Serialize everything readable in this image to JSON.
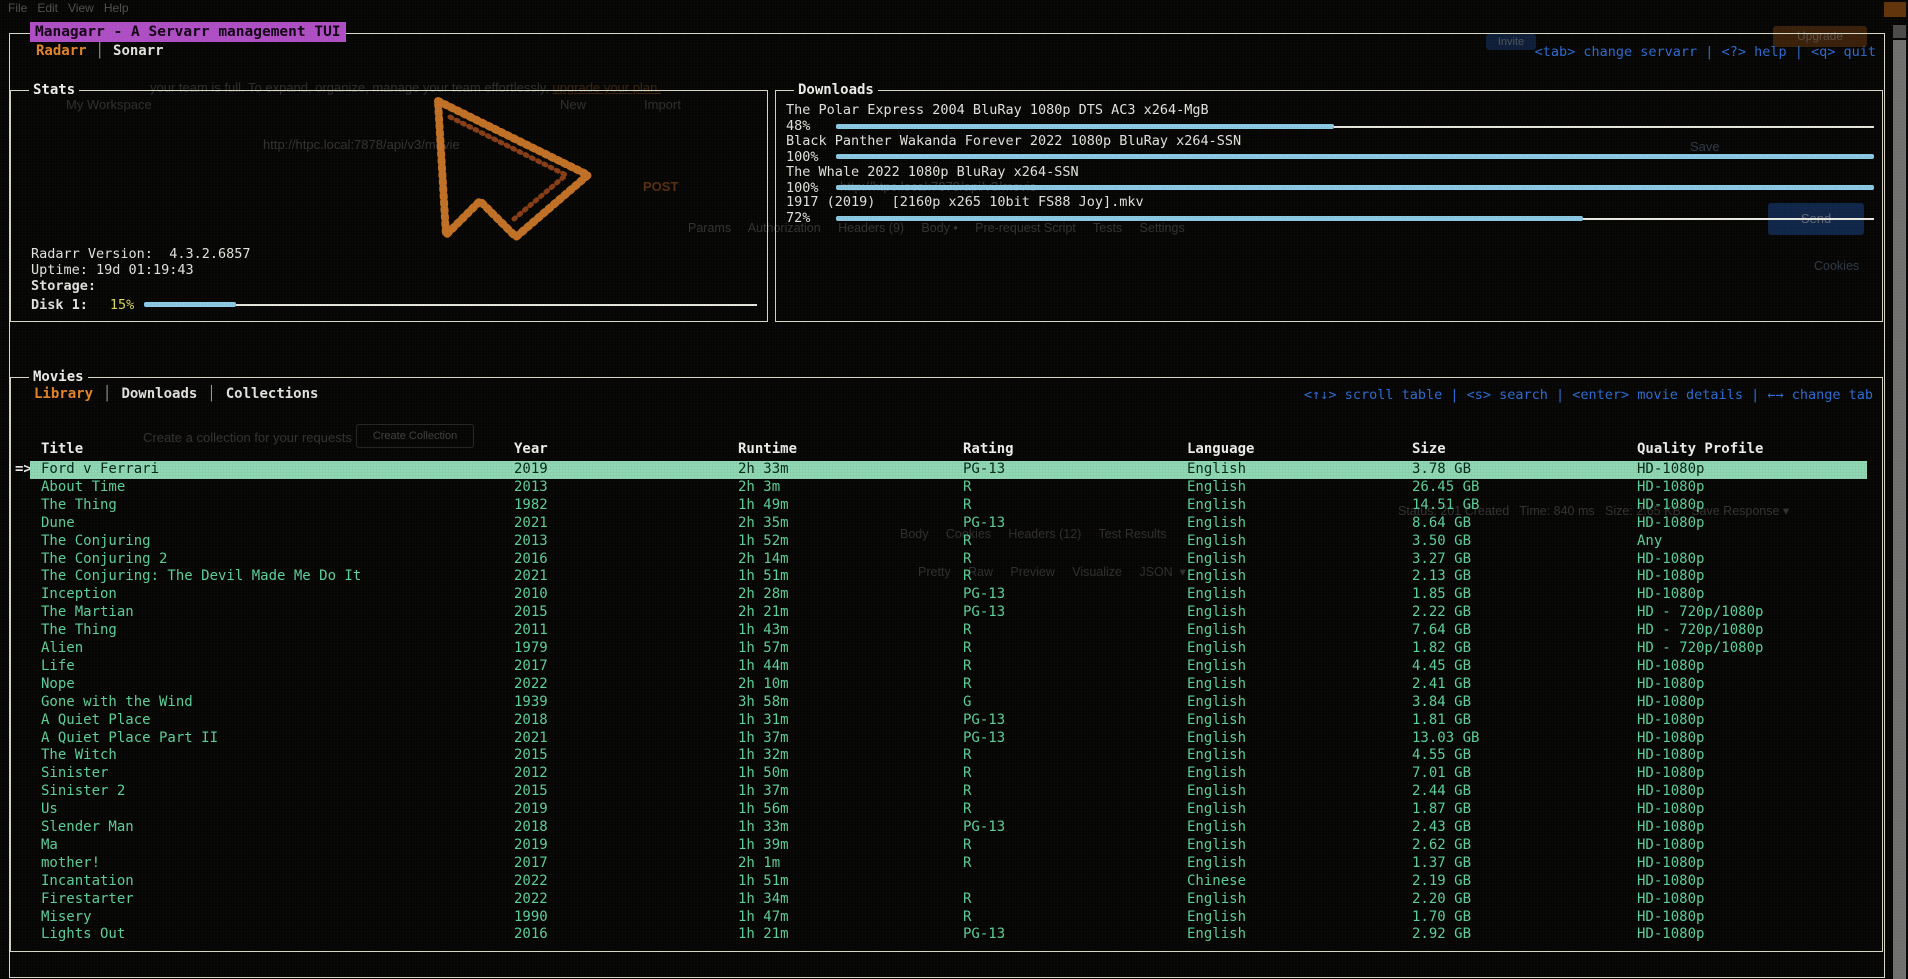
{
  "window": {
    "title": "Managarr - A Servarr management TUI",
    "tabs": [
      {
        "label": "Radarr",
        "active": true
      },
      {
        "label": "Sonarr",
        "active": false
      }
    ],
    "tab_separator": "│",
    "keybar": "<tab> change servarr | <?> help | <q> quit"
  },
  "stats": {
    "panel_title": "Stats",
    "version_label": "Radarr Version:",
    "version_value": "4.3.2.6857",
    "uptime_label": "Uptime:",
    "uptime_value": "19d 01:19:43",
    "storage_label": "Storage:",
    "disk": {
      "label": "Disk 1:",
      "percent_label": "15%",
      "percent": 15
    }
  },
  "downloads": {
    "panel_title": "Downloads",
    "items": [
      {
        "title": "The Polar Express 2004 BluRay 1080p DTS AC3 x264-MgB",
        "percent_label": "48%",
        "percent": 48
      },
      {
        "title": "Black Panther Wakanda Forever 2022 1080p BluRay x264-SSN",
        "percent_label": "100%",
        "percent": 100
      },
      {
        "title": "The Whale 2022 1080p BluRay x264-SSN",
        "percent_label": "100%",
        "percent": 100
      },
      {
        "title": "1917 (2019)  [2160p x265 10bit FS88 Joy].mkv",
        "percent_label": "72%",
        "percent": 72
      }
    ]
  },
  "movies": {
    "panel_title": "Movies",
    "tabs": [
      {
        "label": "Library",
        "active": true
      },
      {
        "label": "Downloads",
        "active": false
      },
      {
        "label": "Collections",
        "active": false
      }
    ],
    "tab_separator": "│",
    "keybar": "<↑↓> scroll table | <s> search | <enter> movie details | ←→ change tab",
    "selection_indicator": "=>",
    "selected_index": 0,
    "columns": [
      "Title",
      "Year",
      "Runtime",
      "Rating",
      "Language",
      "Size",
      "Quality Profile"
    ],
    "rows": [
      [
        "Ford v Ferrari",
        "2019",
        "2h 33m",
        "PG-13",
        "English",
        "3.78 GB",
        "HD-1080p"
      ],
      [
        "About Time",
        "2013",
        "2h 3m",
        "R",
        "English",
        "26.45 GB",
        "HD-1080p"
      ],
      [
        "The Thing",
        "1982",
        "1h 49m",
        "R",
        "English",
        "14.51 GB",
        "HD-1080p"
      ],
      [
        "Dune",
        "2021",
        "2h 35m",
        "PG-13",
        "English",
        "8.64 GB",
        "HD-1080p"
      ],
      [
        "The Conjuring",
        "2013",
        "1h 52m",
        "R",
        "English",
        "3.50 GB",
        "Any"
      ],
      [
        "The Conjuring 2",
        "2016",
        "2h 14m",
        "R",
        "English",
        "3.27 GB",
        "HD-1080p"
      ],
      [
        "The Conjuring: The Devil Made Me Do It",
        "2021",
        "1h 51m",
        "R",
        "English",
        "2.13 GB",
        "HD-1080p"
      ],
      [
        "Inception",
        "2010",
        "2h 28m",
        "PG-13",
        "English",
        "1.85 GB",
        "HD-1080p"
      ],
      [
        "The Martian",
        "2015",
        "2h 21m",
        "PG-13",
        "English",
        "2.22 GB",
        "HD - 720p/1080p"
      ],
      [
        "The Thing",
        "2011",
        "1h 43m",
        "R",
        "English",
        "7.64 GB",
        "HD - 720p/1080p"
      ],
      [
        "Alien",
        "1979",
        "1h 57m",
        "R",
        "English",
        "1.82 GB",
        "HD - 720p/1080p"
      ],
      [
        "Life",
        "2017",
        "1h 44m",
        "R",
        "English",
        "4.45 GB",
        "HD-1080p"
      ],
      [
        "Nope",
        "2022",
        "2h 10m",
        "R",
        "English",
        "2.41 GB",
        "HD-1080p"
      ],
      [
        "Gone with the Wind",
        "1939",
        "3h 58m",
        "G",
        "English",
        "3.84 GB",
        "HD-1080p"
      ],
      [
        "A Quiet Place",
        "2018",
        "1h 31m",
        "PG-13",
        "English",
        "1.81 GB",
        "HD-1080p"
      ],
      [
        "A Quiet Place Part II",
        "2021",
        "1h 37m",
        "PG-13",
        "English",
        "13.03 GB",
        "HD-1080p"
      ],
      [
        "The Witch",
        "2015",
        "1h 32m",
        "R",
        "English",
        "4.55 GB",
        "HD-1080p"
      ],
      [
        "Sinister",
        "2012",
        "1h 50m",
        "R",
        "English",
        "7.01 GB",
        "HD-1080p"
      ],
      [
        "Sinister 2",
        "2015",
        "1h 37m",
        "R",
        "English",
        "2.44 GB",
        "HD-1080p"
      ],
      [
        "Us",
        "2019",
        "1h 56m",
        "R",
        "English",
        "1.87 GB",
        "HD-1080p"
      ],
      [
        "Slender Man",
        "2018",
        "1h 33m",
        "PG-13",
        "English",
        "2.43 GB",
        "HD-1080p"
      ],
      [
        "Ma",
        "2019",
        "1h 39m",
        "R",
        "English",
        "2.62 GB",
        "HD-1080p"
      ],
      [
        "mother!",
        "2017",
        "2h 1m",
        "R",
        "English",
        "1.37 GB",
        "HD-1080p"
      ],
      [
        "Incantation",
        "2022",
        "1h 51m",
        "",
        "Chinese",
        "2.19 GB",
        "HD-1080p"
      ],
      [
        "Firestarter",
        "2022",
        "1h 34m",
        "R",
        "English",
        "2.20 GB",
        "HD-1080p"
      ],
      [
        "Misery",
        "1990",
        "1h 47m",
        "R",
        "English",
        "1.70 GB",
        "HD-1080p"
      ],
      [
        "Lights Out",
        "2016",
        "1h 21m",
        "PG-13",
        "English",
        "2.92 GB",
        "HD-1080p"
      ]
    ]
  },
  "colors": {
    "title_bg": "#b14fc8",
    "accent_orange": "#e5862d",
    "key_blue": "#2d6cd4",
    "row_green": "#5ed19c",
    "selected_bg": "#8ed8b5",
    "bar_blue": "#8ccbe8",
    "disk_pct_yellow": "#d8d85e",
    "border": "#d9d9c8"
  },
  "background_artifacts": {
    "menubar": "File   Edit   View   Help",
    "workspace": "My Workspace",
    "new_btn": "New",
    "import_btn": "Import",
    "team_banner": "your team is full. To expand, organize, manage your team effortlessly, ",
    "team_banner_link": "upgrade your plan.",
    "request_url": "http://htpc.local:7878/api/v3/movie",
    "method": "POST",
    "request_tabs": "Params     Authorization     Headers (9)     Body •     Pre-request Script     Tests     Settings",
    "collection_hint": "Create a collection for your requests",
    "create_collection_btn": "Create Collection",
    "response_tabs": "Body     Cookies     Headers (12)     Test Results",
    "response_format_tabs": "Pretty     Raw     Preview     Visualize     JSON  ▾",
    "response_status": "Status: 201 Created   Time: 840 ms   Size: 2.65 KB   Save Response ▾",
    "save_btn": "Save",
    "send_btn": "Send",
    "cookies_link": "Cookies",
    "upgrade_btn": "Upgrade",
    "invite_btn": "Invite"
  }
}
